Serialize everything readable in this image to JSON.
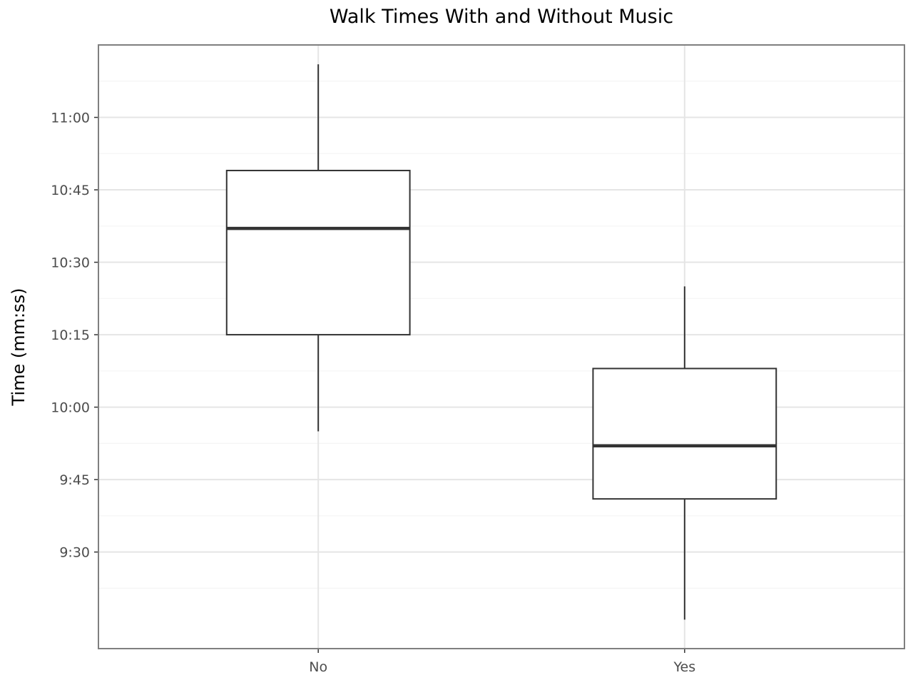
{
  "chart_data": {
    "type": "boxplot",
    "title": "Walk Times With and Without Music",
    "xlabel": "",
    "ylabel": "Time (mm:ss)",
    "y_unit": "mm:ss",
    "ylim": [
      "9:10",
      "11:15"
    ],
    "y_ticks": [
      "9:30",
      "9:45",
      "10:00",
      "10:15",
      "10:30",
      "10:45",
      "11:00"
    ],
    "grid": true,
    "categories": [
      "No",
      "Yes"
    ],
    "boxes": [
      {
        "category": "No",
        "whisker_low": "9:55",
        "q1": "10:15",
        "median": "10:37",
        "q3": "10:49",
        "whisker_high": "11:11"
      },
      {
        "category": "Yes",
        "whisker_low": "9:16",
        "q1": "9:41",
        "median": "9:52",
        "q3": "10:08",
        "whisker_high": "10:25"
      }
    ],
    "colors": {
      "box_fill": "#ffffff",
      "box_stroke": "#333333",
      "grid_major": "#e5e5e5",
      "grid_minor": "#f5f5f5",
      "panel_border": "#7f7f7f",
      "tick_text": "#4d4d4d"
    }
  }
}
